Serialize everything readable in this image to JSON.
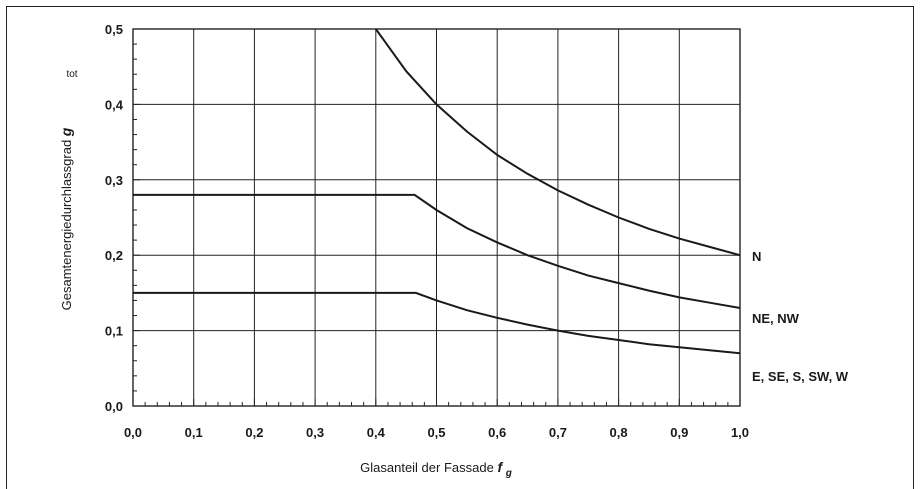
{
  "chart_data": {
    "type": "line",
    "title": "",
    "xlabel": "Glasanteil der Fassade",
    "xlabel_symbol": "f",
    "xlabel_subscript": "g",
    "ylabel": "Gesamtenergiedurchlassgrad",
    "ylabel_symbol": "g",
    "ylabel_subscript": "tot",
    "xlim": [
      0.0,
      1.0
    ],
    "ylim": [
      0.0,
      0.5
    ],
    "x_ticks": [
      "0,0",
      "0,1",
      "0,2",
      "0,3",
      "0,4",
      "0,5",
      "0,6",
      "0,7",
      "0,8",
      "0,9",
      "1,0"
    ],
    "y_ticks": [
      "0,0",
      "0,1",
      "0,2",
      "0,3",
      "0,4",
      "0,5"
    ],
    "grid": true,
    "legend": "labels at right end of curves",
    "series": [
      {
        "name": "N",
        "points": [
          [
            0.4,
            0.5
          ],
          [
            0.45,
            0.444
          ],
          [
            0.5,
            0.4
          ],
          [
            0.55,
            0.364
          ],
          [
            0.6,
            0.333
          ],
          [
            0.65,
            0.308
          ],
          [
            0.7,
            0.286
          ],
          [
            0.75,
            0.267
          ],
          [
            0.8,
            0.25
          ],
          [
            0.85,
            0.235
          ],
          [
            0.9,
            0.222
          ],
          [
            0.95,
            0.211
          ],
          [
            1.0,
            0.2
          ]
        ]
      },
      {
        "name": "NE, NW",
        "points": [
          [
            0.0,
            0.28
          ],
          [
            0.464,
            0.28
          ],
          [
            0.5,
            0.26
          ],
          [
            0.55,
            0.236
          ],
          [
            0.6,
            0.217
          ],
          [
            0.65,
            0.2
          ],
          [
            0.7,
            0.186
          ],
          [
            0.75,
            0.173
          ],
          [
            0.8,
            0.163
          ],
          [
            0.85,
            0.153
          ],
          [
            0.9,
            0.144
          ],
          [
            0.95,
            0.137
          ],
          [
            1.0,
            0.13
          ]
        ]
      },
      {
        "name": "E, SE, S, SW, W",
        "points": [
          [
            0.0,
            0.15
          ],
          [
            0.466,
            0.15
          ],
          [
            0.5,
            0.14
          ],
          [
            0.55,
            0.127
          ],
          [
            0.6,
            0.117
          ],
          [
            0.65,
            0.108
          ],
          [
            0.7,
            0.1
          ],
          [
            0.75,
            0.093
          ],
          [
            0.8,
            0.0875
          ],
          [
            0.85,
            0.082
          ],
          [
            0.9,
            0.078
          ],
          [
            0.95,
            0.074
          ],
          [
            1.0,
            0.07
          ]
        ]
      }
    ]
  }
}
